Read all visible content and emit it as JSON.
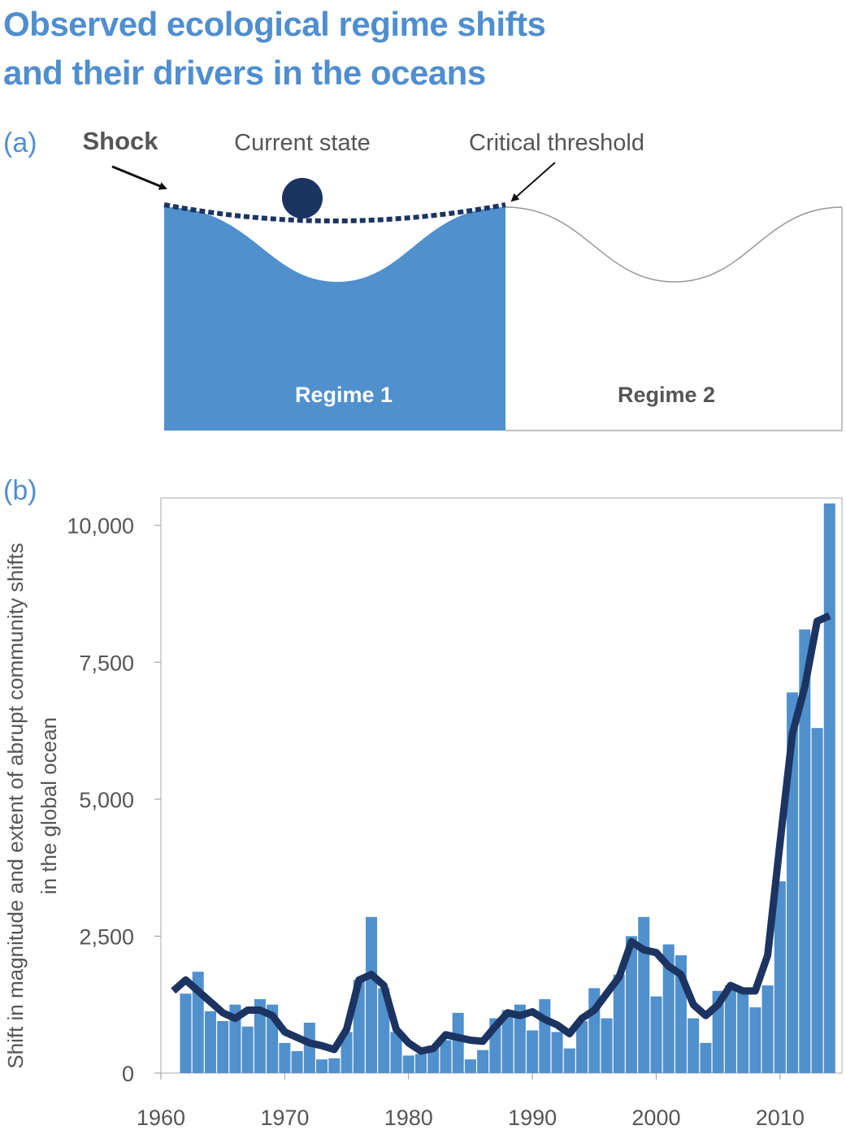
{
  "title": {
    "line1": "Observed ecological regime shifts",
    "line2": "and their drivers in the oceans"
  },
  "panel_a": {
    "label": "(a)",
    "shock_label": "Shock",
    "current_state_label": "Current state",
    "critical_threshold_label": "Critical threshold",
    "regime1_label": "Regime 1",
    "regime2_label": "Regime 2"
  },
  "panel_b": {
    "label": "(b)"
  },
  "colors": {
    "title": "#4f8ecf",
    "regime1_fill": "#5090cd",
    "bars": "#5090cd",
    "line": "#1c3461",
    "ball": "#1c3461",
    "text": "#555555"
  },
  "chart_data": {
    "type": "bar",
    "x": [
      1962,
      1963,
      1964,
      1965,
      1966,
      1967,
      1968,
      1969,
      1970,
      1971,
      1972,
      1973,
      1974,
      1975,
      1976,
      1977,
      1978,
      1979,
      1980,
      1981,
      1982,
      1983,
      1984,
      1985,
      1986,
      1987,
      1988,
      1989,
      1990,
      1991,
      1992,
      1993,
      1994,
      1995,
      1996,
      1997,
      1998,
      1999,
      2000,
      2001,
      2002,
      2003,
      2004,
      2005,
      2006,
      2007,
      2008,
      2009,
      2010,
      2011,
      2012,
      2013,
      2014
    ],
    "series": [
      {
        "type": "bar",
        "values": [
          1450,
          1850,
          1130,
          950,
          1250,
          850,
          1350,
          1250,
          550,
          400,
          920,
          250,
          270,
          750,
          1700,
          2850,
          1550,
          750,
          320,
          350,
          500,
          600,
          1100,
          250,
          420,
          1000,
          1150,
          1250,
          780,
          1350,
          750,
          450,
          950,
          1550,
          1000,
          1800,
          2500,
          2850,
          1400,
          2350,
          2150,
          1000,
          550,
          1500,
          1600,
          1550,
          1200,
          1600,
          3500,
          6950,
          8100,
          6300,
          10400
        ]
      },
      {
        "type": "line",
        "values": [
          1700,
          1500,
          1300,
          1100,
          1000,
          1150,
          1150,
          1050,
          750,
          650,
          550,
          500,
          430,
          800,
          1700,
          1800,
          1600,
          800,
          550,
          400,
          450,
          700,
          650,
          600,
          580,
          850,
          1100,
          1050,
          1120,
          980,
          880,
          720,
          1000,
          1150,
          1450,
          1750,
          2400,
          2250,
          2200,
          1950,
          1800,
          1250,
          1050,
          1250,
          1600,
          1500,
          1500,
          2150,
          4200,
          6200,
          7050,
          8250,
          8350
        ]
      }
    ],
    "line_start": {
      "x": 1961,
      "y": 1500
    },
    "xlabel": "",
    "ylabel_line1": "Shift in magnitude and extent of abrupt community shifts",
    "ylabel_line2": "in the global ocean",
    "x_ticks": [
      "1960",
      "1970",
      "1980",
      "1990",
      "2000",
      "2010"
    ],
    "y_ticks": [
      "0",
      "2,500",
      "5,000",
      "7,500",
      "10,000"
    ],
    "xlim": [
      1960,
      2015
    ],
    "ylim": [
      0,
      10500
    ],
    "grid": false,
    "legend": "none"
  }
}
